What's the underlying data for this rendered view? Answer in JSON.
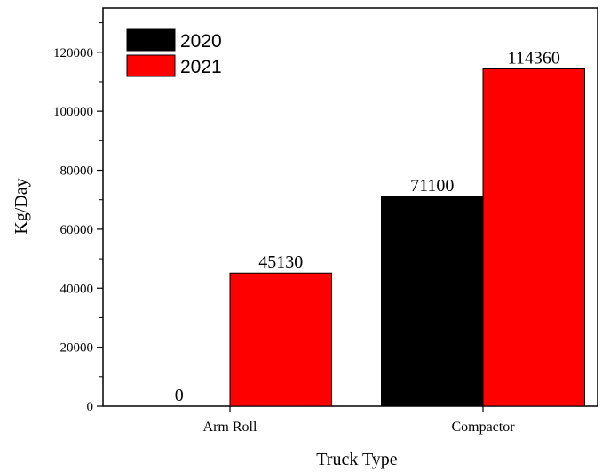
{
  "chart_data": {
    "type": "bar",
    "title": "",
    "xlabel": "Truck Type",
    "ylabel": "Kg/Day",
    "categories": [
      "Arm Roll",
      "Compactor"
    ],
    "series": [
      {
        "name": "2020",
        "color": "#000000",
        "values": [
          0,
          71100
        ]
      },
      {
        "name": "2021",
        "color": "#ff0000",
        "values": [
          45130,
          114360
        ]
      }
    ],
    "data_labels": [
      [
        "0",
        "71100"
      ],
      [
        "45130",
        "114360"
      ]
    ],
    "ylim": [
      0,
      135000
    ],
    "yticks": [
      0,
      20000,
      40000,
      60000,
      80000,
      100000,
      120000
    ],
    "ytick_labels": [
      "0",
      "20000",
      "40000",
      "60000",
      "80000",
      "100000",
      "120000"
    ],
    "grid": false,
    "legend_position": "top-left"
  }
}
